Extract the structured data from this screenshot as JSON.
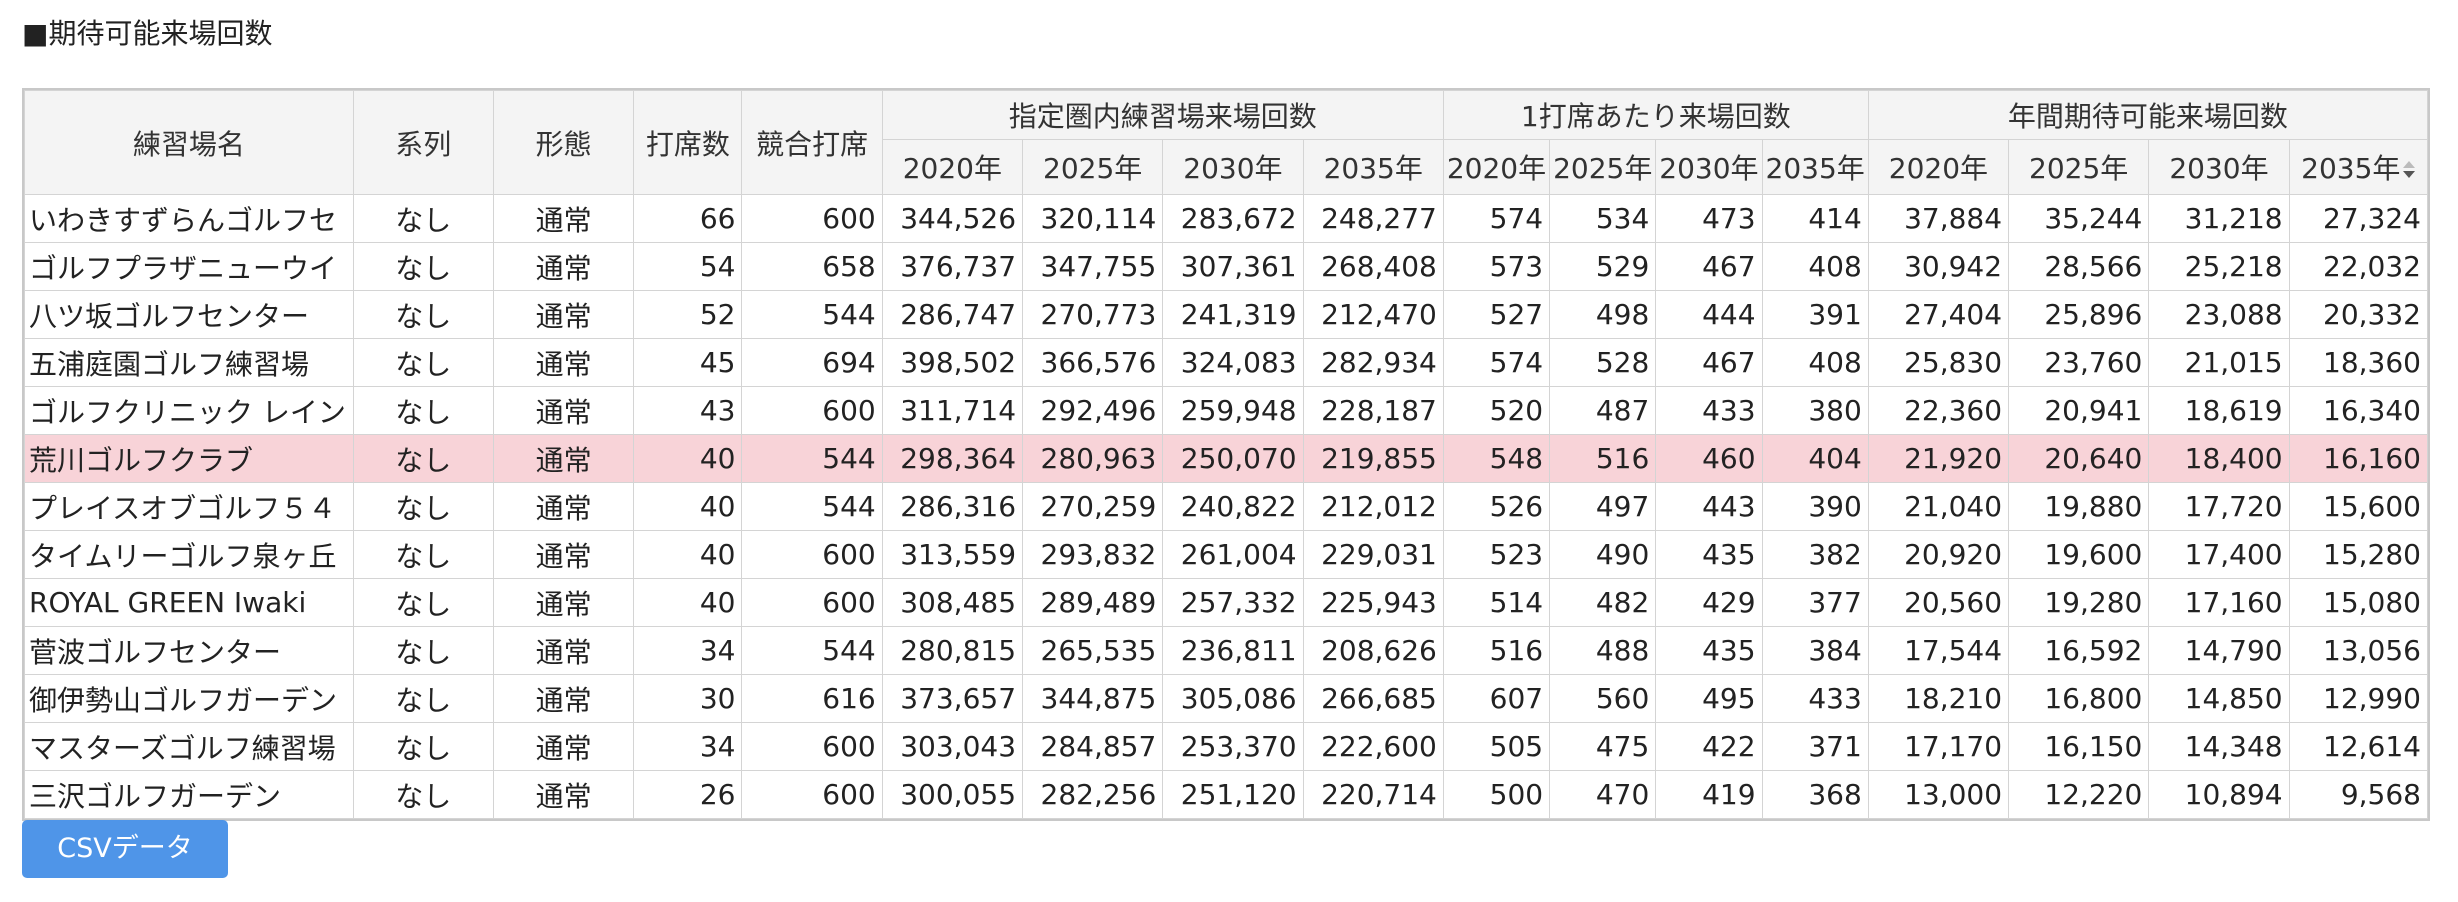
{
  "section_title": "■期待可能来場回数",
  "table": {
    "headers": {
      "name": "練習場名",
      "series": "系列",
      "type": "形態",
      "seats": "打席数",
      "competing_seats": "競合打席",
      "group_visits": "指定圏内練習場来場回数",
      "group_per_seat": "1打席あたり来場回数",
      "group_annual": "年間期待可能来場回数",
      "years": [
        "2020年",
        "2025年",
        "2030年",
        "2035年"
      ]
    },
    "sorted_column": "年間期待可能来場回数 2035年",
    "highlight_color": "#f8d3d8",
    "rows": [
      {
        "name": "いわきすずらんゴルフセ",
        "series": "なし",
        "type": "通常",
        "seats": "66",
        "competing": "600",
        "visits": [
          "344,526",
          "320,114",
          "283,672",
          "248,277"
        ],
        "per_seat": [
          "574",
          "534",
          "473",
          "414"
        ],
        "annual": [
          "37,884",
          "35,244",
          "31,218",
          "27,324"
        ]
      },
      {
        "name": "ゴルフプラザニューウイ",
        "series": "なし",
        "type": "通常",
        "seats": "54",
        "competing": "658",
        "visits": [
          "376,737",
          "347,755",
          "307,361",
          "268,408"
        ],
        "per_seat": [
          "573",
          "529",
          "467",
          "408"
        ],
        "annual": [
          "30,942",
          "28,566",
          "25,218",
          "22,032"
        ]
      },
      {
        "name": "八ツ坂ゴルフセンター",
        "series": "なし",
        "type": "通常",
        "seats": "52",
        "competing": "544",
        "visits": [
          "286,747",
          "270,773",
          "241,319",
          "212,470"
        ],
        "per_seat": [
          "527",
          "498",
          "444",
          "391"
        ],
        "annual": [
          "27,404",
          "25,896",
          "23,088",
          "20,332"
        ]
      },
      {
        "name": "五浦庭園ゴルフ練習場",
        "series": "なし",
        "type": "通常",
        "seats": "45",
        "competing": "694",
        "visits": [
          "398,502",
          "366,576",
          "324,083",
          "282,934"
        ],
        "per_seat": [
          "574",
          "528",
          "467",
          "408"
        ],
        "annual": [
          "25,830",
          "23,760",
          "21,015",
          "18,360"
        ]
      },
      {
        "name": "ゴルフクリニック レイン",
        "series": "なし",
        "type": "通常",
        "seats": "43",
        "competing": "600",
        "visits": [
          "311,714",
          "292,496",
          "259,948",
          "228,187"
        ],
        "per_seat": [
          "520",
          "487",
          "433",
          "380"
        ],
        "annual": [
          "22,360",
          "20,941",
          "18,619",
          "16,340"
        ]
      },
      {
        "name": "荒川ゴルフクラブ",
        "series": "なし",
        "type": "通常",
        "seats": "40",
        "competing": "544",
        "visits": [
          "298,364",
          "280,963",
          "250,070",
          "219,855"
        ],
        "per_seat": [
          "548",
          "516",
          "460",
          "404"
        ],
        "annual": [
          "21,920",
          "20,640",
          "18,400",
          "16,160"
        ],
        "highlighted": true
      },
      {
        "name": "プレイスオブゴルフ５４",
        "series": "なし",
        "type": "通常",
        "seats": "40",
        "competing": "544",
        "visits": [
          "286,316",
          "270,259",
          "240,822",
          "212,012"
        ],
        "per_seat": [
          "526",
          "497",
          "443",
          "390"
        ],
        "annual": [
          "21,040",
          "19,880",
          "17,720",
          "15,600"
        ]
      },
      {
        "name": "タイムリーゴルフ泉ヶ丘",
        "series": "なし",
        "type": "通常",
        "seats": "40",
        "competing": "600",
        "visits": [
          "313,559",
          "293,832",
          "261,004",
          "229,031"
        ],
        "per_seat": [
          "523",
          "490",
          "435",
          "382"
        ],
        "annual": [
          "20,920",
          "19,600",
          "17,400",
          "15,280"
        ]
      },
      {
        "name": "ROYAL GREEN Iwaki",
        "series": "なし",
        "type": "通常",
        "seats": "40",
        "competing": "600",
        "visits": [
          "308,485",
          "289,489",
          "257,332",
          "225,943"
        ],
        "per_seat": [
          "514",
          "482",
          "429",
          "377"
        ],
        "annual": [
          "20,560",
          "19,280",
          "17,160",
          "15,080"
        ]
      },
      {
        "name": "菅波ゴルフセンター",
        "series": "なし",
        "type": "通常",
        "seats": "34",
        "competing": "544",
        "visits": [
          "280,815",
          "265,535",
          "236,811",
          "208,626"
        ],
        "per_seat": [
          "516",
          "488",
          "435",
          "384"
        ],
        "annual": [
          "17,544",
          "16,592",
          "14,790",
          "13,056"
        ]
      },
      {
        "name": "御伊勢山ゴルフガーデン",
        "series": "なし",
        "type": "通常",
        "seats": "30",
        "competing": "616",
        "visits": [
          "373,657",
          "344,875",
          "305,086",
          "266,685"
        ],
        "per_seat": [
          "607",
          "560",
          "495",
          "433"
        ],
        "annual": [
          "18,210",
          "16,800",
          "14,850",
          "12,990"
        ]
      },
      {
        "name": "マスターズゴルフ練習場",
        "series": "なし",
        "type": "通常",
        "seats": "34",
        "competing": "600",
        "visits": [
          "303,043",
          "284,857",
          "253,370",
          "222,600"
        ],
        "per_seat": [
          "505",
          "475",
          "422",
          "371"
        ],
        "annual": [
          "17,170",
          "16,150",
          "14,348",
          "12,614"
        ]
      },
      {
        "name": "三沢ゴルフガーデン",
        "series": "なし",
        "type": "通常",
        "seats": "26",
        "competing": "600",
        "visits": [
          "300,055",
          "282,256",
          "251,120",
          "220,714"
        ],
        "per_seat": [
          "500",
          "470",
          "419",
          "368"
        ],
        "annual": [
          "13,000",
          "12,220",
          "10,894",
          "9,568"
        ]
      }
    ]
  },
  "csv_button": {
    "label": "CSVデータ",
    "color": "#4f95e8"
  }
}
